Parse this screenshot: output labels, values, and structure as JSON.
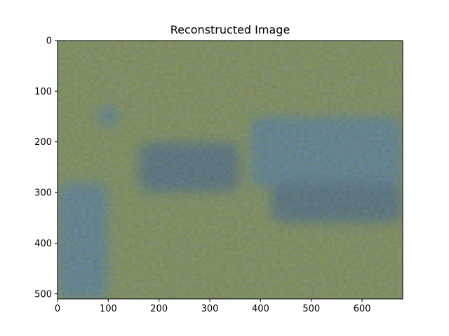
{
  "chart_data": {
    "type": "heatmap",
    "title": "Reconstructed Image",
    "xlabel": "",
    "ylabel": "",
    "xlim": [
      0,
      680
    ],
    "ylim": [
      510,
      0
    ],
    "x_ticks": [
      0,
      100,
      200,
      300,
      400,
      500,
      600
    ],
    "y_ticks": [
      0,
      100,
      200,
      300,
      400,
      500
    ],
    "grid": false,
    "image_description_palette": {
      "base": "#7f8c6e",
      "blue": "#3a6fd8",
      "deep_blue": "#2a4fb0",
      "olive": "#8e9a5f",
      "rust": "#8a5a4a"
    },
    "blue_regions": [
      {
        "x0": 0,
        "x1": 100,
        "y0": 280,
        "y1": 510
      },
      {
        "x0": 160,
        "x1": 360,
        "y0": 200,
        "y1": 300
      },
      {
        "x0": 380,
        "x1": 680,
        "y0": 150,
        "y1": 290
      },
      {
        "x0": 420,
        "x1": 680,
        "y0": 280,
        "y1": 360
      },
      {
        "x0": 80,
        "x1": 120,
        "y0": 130,
        "y1": 170
      }
    ]
  }
}
